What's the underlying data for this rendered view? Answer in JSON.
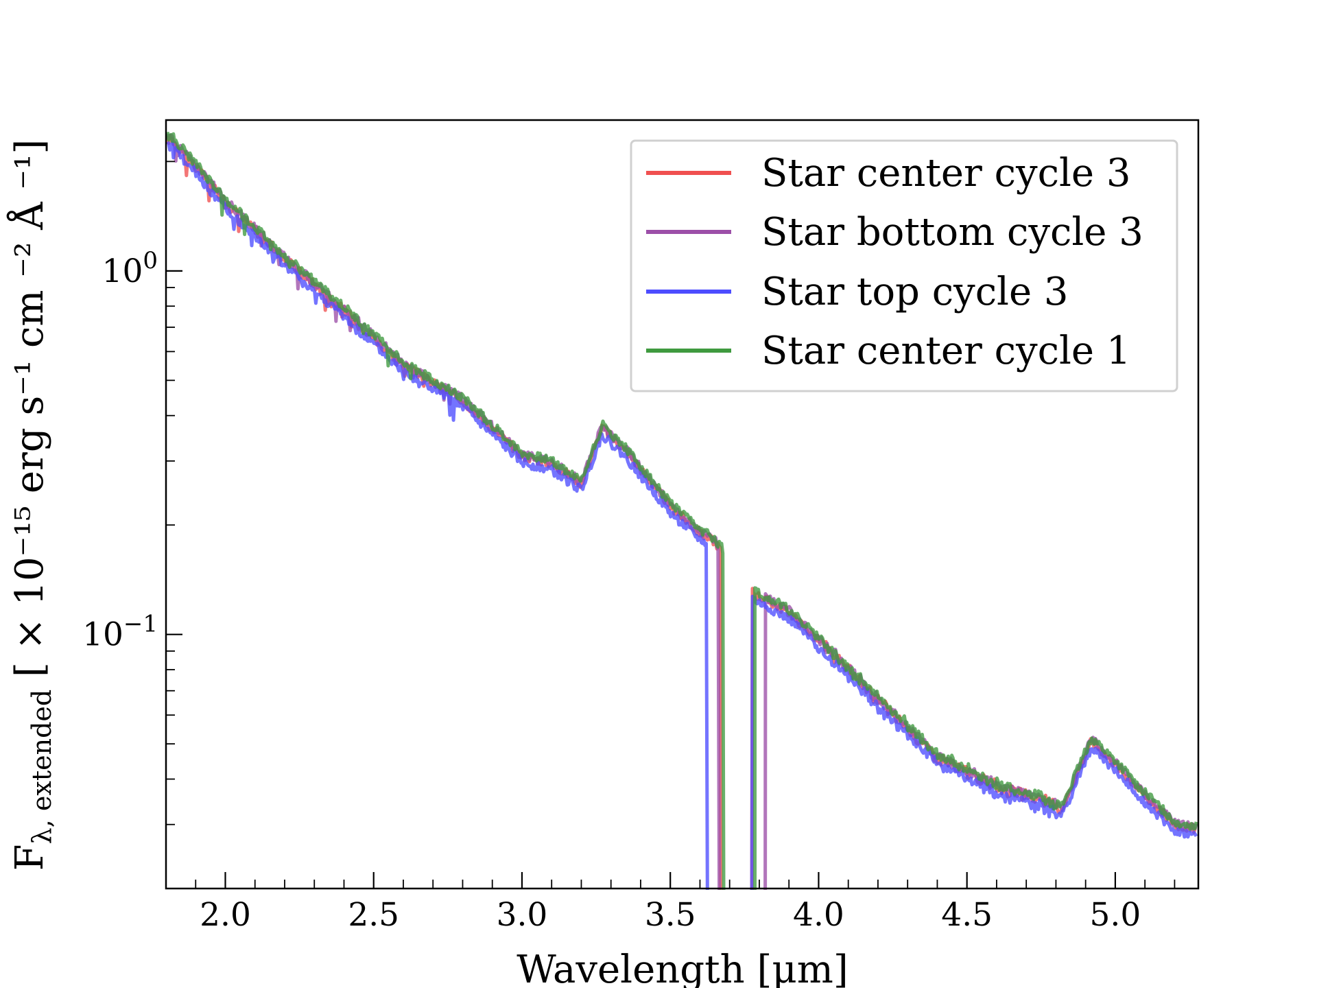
{
  "chart_data": {
    "type": "line",
    "title": "",
    "xlabel": "Wavelength [μm]",
    "ylabel_main": "F",
    "ylabel_sub": "λ, extended",
    "ylabel_units": " [ × 10⁻¹⁵ erg s⁻¹ cm ⁻² Å ⁻¹]",
    "xscale": "linear",
    "yscale": "log",
    "xlim": [
      1.8,
      5.28
    ],
    "ylim": [
      0.02,
      2.6
    ],
    "xticks": [
      2.0,
      2.5,
      3.0,
      3.5,
      4.0,
      4.5,
      5.0
    ],
    "xtick_labels": [
      "2.0",
      "2.5",
      "3.0",
      "3.5",
      "4.0",
      "4.5",
      "5.0"
    ],
    "yticks": [
      0.1,
      1.0
    ],
    "ytick_base": "10",
    "ytick_exponents": [
      "−1",
      "0"
    ],
    "legend_position": "top-right",
    "series_anchor": {
      "x": [
        1.82,
        2.0,
        2.2,
        2.4,
        2.6,
        2.8,
        3.0,
        3.1,
        3.2,
        3.27,
        3.35,
        3.5,
        3.6,
        3.65,
        3.78,
        3.9,
        4.0,
        4.2,
        4.4,
        4.6,
        4.75,
        4.82,
        4.92,
        5.0,
        5.1,
        5.2,
        5.28
      ],
      "y": [
        2.3,
        1.55,
        1.08,
        0.78,
        0.55,
        0.44,
        0.31,
        0.295,
        0.26,
        0.37,
        0.32,
        0.225,
        0.19,
        0.18,
        0.13,
        0.115,
        0.096,
        0.066,
        0.046,
        0.038,
        0.035,
        0.033,
        0.051,
        0.044,
        0.036,
        0.03,
        0.029
      ]
    },
    "series": [
      {
        "name": "Star center cycle 3",
        "color": "#f05050",
        "gap": [
          3.67,
          3.775
        ],
        "offset": 1.0
      },
      {
        "name": "Star bottom cycle 3",
        "color": "#9c4fa8",
        "gap": [
          3.665,
          3.82
        ],
        "offset": 1.01
      },
      {
        "name": "Star top cycle 3",
        "color": "#4d4dff",
        "gap": [
          3.625,
          3.775
        ],
        "offset": 0.96
      },
      {
        "name": "Star center cycle 1",
        "color": "#3f9a3f",
        "gap": [
          3.68,
          3.785
        ],
        "offset": 1.02
      }
    ]
  }
}
